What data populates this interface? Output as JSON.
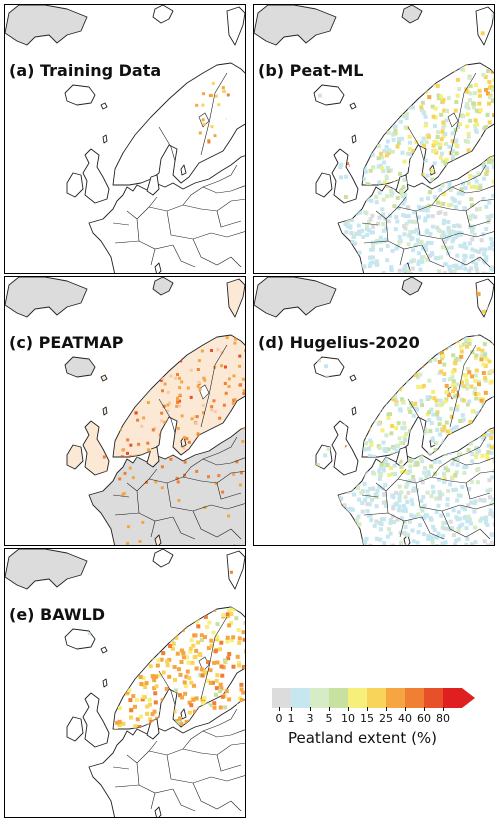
{
  "panels": [
    {
      "id": "a",
      "label": "(a) Training Data",
      "style": "training"
    },
    {
      "id": "b",
      "label": "(b) Peat-ML",
      "style": "full"
    },
    {
      "id": "c",
      "label": "(c) PEATMAP",
      "style": "peatmap"
    },
    {
      "id": "d",
      "label": "(d) Hugelius-2020",
      "style": "full"
    },
    {
      "id": "e",
      "label": "(e) BAWLD",
      "style": "bawld"
    }
  ],
  "legend": {
    "title": "Peatland extent (%)",
    "ticks": [
      "0",
      "1",
      "3",
      "5",
      "10",
      "15",
      "25",
      "40",
      "60",
      "80"
    ],
    "colors": [
      "#dcdcdc",
      "#c6e6f0",
      "#d6ecc6",
      "#c8e0a0",
      "#f6f07a",
      "#f9d45a",
      "#f5a542",
      "#f07e33",
      "#e8502a",
      "#e02020"
    ]
  },
  "colors": {
    "land_gray": "#dcdcdc",
    "ocean": "#ffffff",
    "border": "#222222"
  }
}
